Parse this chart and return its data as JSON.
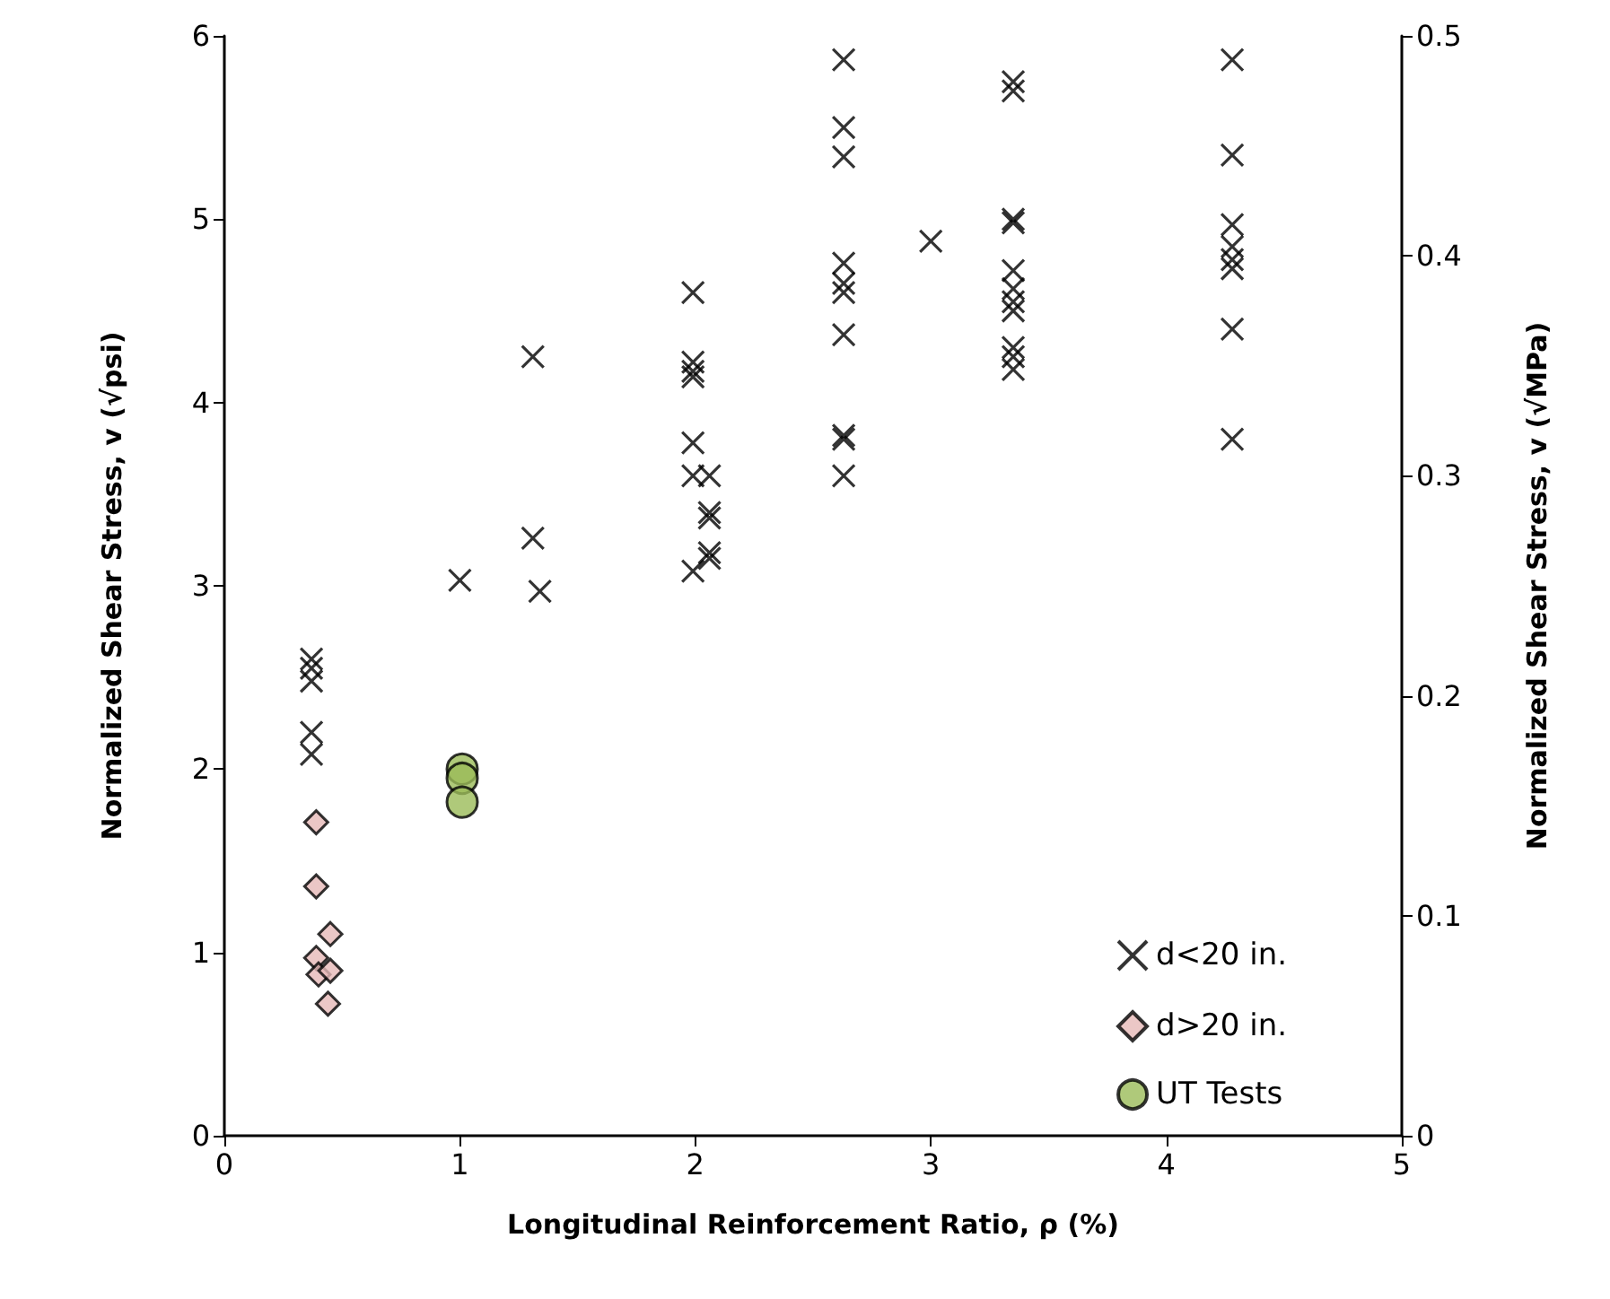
{
  "chart_data": {
    "type": "scatter",
    "xlabel": "Longitudinal Reinforcement Ratio, ρ (%)",
    "ylabel": "Normalized Shear Stress, v (√psi)",
    "y2label": "Normalized Shear Stress, v (√MPa)",
    "xlim": [
      0,
      5
    ],
    "xticks": [
      0,
      1,
      2,
      3,
      4,
      5
    ],
    "ylim": [
      0,
      6
    ],
    "yticks": [
      0,
      1,
      2,
      3,
      4,
      5,
      6
    ],
    "y2lim": [
      0,
      0.5
    ],
    "y2ticks": [
      0,
      0.1,
      0.2,
      0.3,
      0.4,
      0.5
    ],
    "grid": false,
    "legend": "bottom right",
    "series": [
      {
        "name": "d<20 in.",
        "color": "#000000",
        "marker": "cross",
        "x": [
          0.37,
          0.37,
          0.37,
          0.37,
          0.37,
          1.0,
          1.31,
          1.31,
          1.34,
          1.99,
          1.99,
          1.99,
          1.99,
          1.99,
          1.99,
          1.99,
          2.06,
          2.06,
          2.06,
          2.06,
          2.06,
          2.63,
          2.63,
          2.63,
          2.63,
          2.63,
          2.63,
          2.63,
          2.63,
          2.63,
          2.63,
          3.0,
          3.35,
          3.35,
          3.35,
          3.35,
          3.35,
          3.35,
          3.35,
          3.35,
          3.35,
          3.35,
          3.35,
          4.28,
          4.28,
          4.28,
          4.28,
          4.28,
          4.28,
          4.28,
          4.28
        ],
        "values": [
          2.6,
          2.55,
          2.48,
          2.2,
          2.08,
          3.03,
          4.25,
          3.26,
          2.97,
          4.6,
          4.22,
          4.17,
          4.14,
          3.78,
          3.6,
          3.08,
          3.6,
          3.4,
          3.37,
          3.18,
          3.15,
          5.87,
          5.5,
          5.34,
          4.76,
          4.65,
          4.6,
          4.37,
          3.82,
          3.8,
          3.6,
          4.88,
          5.75,
          5.7,
          5.0,
          4.98,
          4.72,
          4.62,
          4.55,
          4.5,
          4.3,
          4.25,
          4.18,
          5.87,
          5.35,
          4.97,
          4.85,
          4.78,
          4.73,
          4.4,
          3.8
        ]
      },
      {
        "name": "d>20 in.",
        "color": "#e6b9b8",
        "marker": "diamond",
        "x": [
          0.39,
          0.39,
          0.45,
          0.39,
          0.4,
          0.45,
          0.44
        ],
        "values": [
          1.71,
          1.36,
          1.1,
          0.97,
          0.88,
          0.9,
          0.72
        ]
      },
      {
        "name": "UT Tests",
        "color": "#9bbb59",
        "marker": "circle",
        "x": [
          1.01,
          1.01,
          1.01
        ],
        "values": [
          2.0,
          1.95,
          1.82
        ]
      }
    ]
  }
}
